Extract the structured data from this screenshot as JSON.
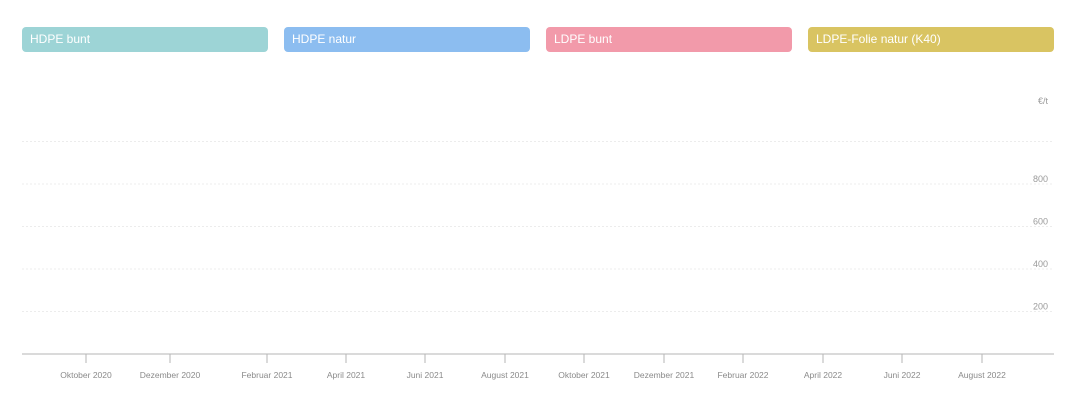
{
  "chart_data": {
    "type": "line",
    "legend_position": "top",
    "series": [
      {
        "name": "HDPE bunt",
        "color": "#9dd4d6",
        "values": []
      },
      {
        "name": "HDPE natur",
        "color": "#8cbdf0",
        "values": []
      },
      {
        "name": "LDPE bunt",
        "color": "#f29aaa",
        "values": []
      },
      {
        "name": "LDPE-Folie natur (K40)",
        "color": "#d9c462",
        "values": []
      }
    ],
    "x_ticks": [
      "Oktober 2020",
      "Dezember 2020",
      "Februar 2021",
      "April 2021",
      "Juni 2021",
      "August 2021",
      "Oktober 2021",
      "Dezember 2021",
      "Februar 2022",
      "April 2022",
      "Juni 2022",
      "August 2022"
    ],
    "y_unit": "€/t",
    "y_ticks": [
      200,
      400,
      600,
      800
    ],
    "ylim": [
      0,
      1000
    ],
    "grid": true
  }
}
